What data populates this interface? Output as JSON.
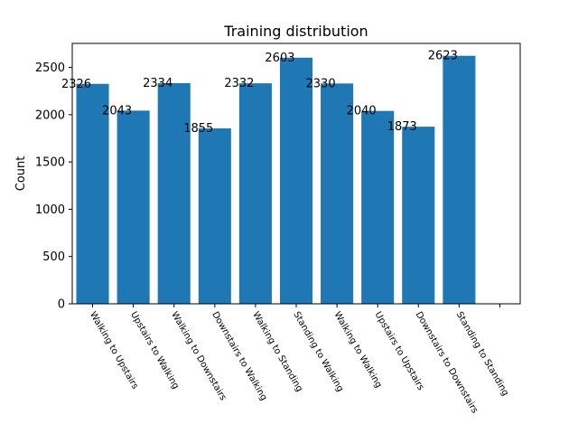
{
  "chart_data": {
    "type": "bar",
    "title": "Training distribution",
    "ylabel": "Count",
    "xlabel": "",
    "categories": [
      "Walking to Upstairs",
      "Upstairs to Walking",
      "Walking to Downstairs",
      "Downstairs to Walking",
      "Walking to Standing",
      "Standing to Walking",
      "Walking to Walking",
      "Upstairs to Upstairs",
      "Downstairs to Downstairs",
      "Standing to Standing"
    ],
    "values": [
      2326,
      2043,
      2334,
      1855,
      2332,
      2603,
      2330,
      2040,
      1873,
      2623
    ],
    "value_labels": [
      "2326",
      "2043",
      "2334",
      "1855",
      "2332",
      "2603",
      "2330",
      "2040",
      "1873",
      "2623"
    ],
    "yticks": [
      0,
      500,
      1000,
      1500,
      2000,
      2500
    ],
    "ylim": [
      0,
      2754
    ],
    "extra_empty_slots": 1,
    "bar_color": "#1f77b4",
    "grid": false,
    "legend": "none"
  }
}
